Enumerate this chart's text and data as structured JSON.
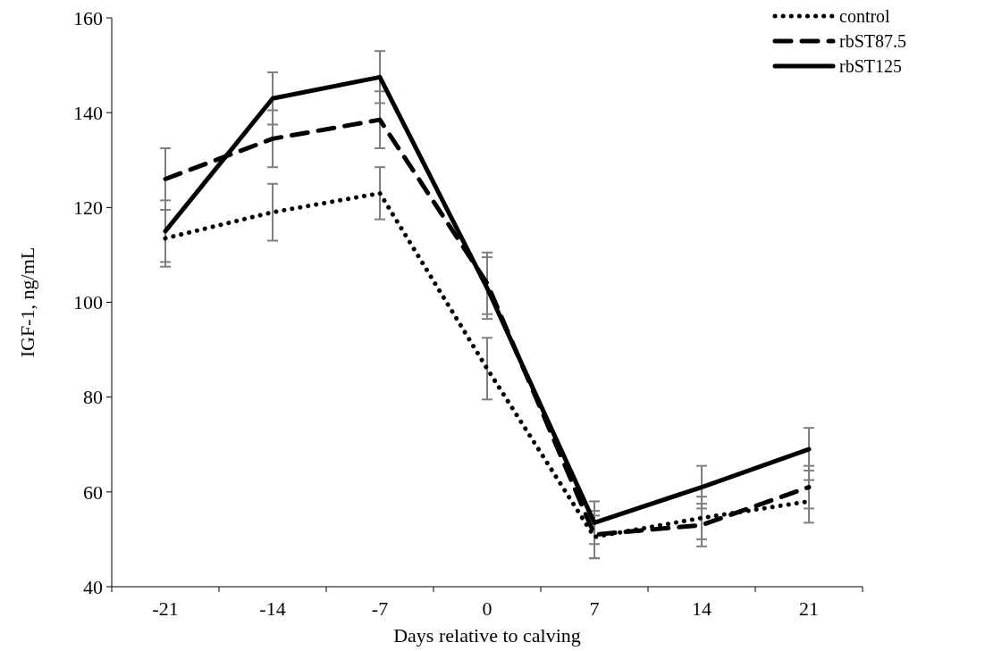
{
  "chart_data": {
    "type": "line",
    "xlabel": "Days relative to calving",
    "ylabel": "IGF-1, ng/mL",
    "categories": [
      "-21",
      "-14",
      "-7",
      "0",
      "7",
      "14",
      "21"
    ],
    "ylim": [
      40,
      160
    ],
    "yticks": [
      40,
      60,
      80,
      100,
      120,
      140,
      160
    ],
    "grid": false,
    "legend": "top right",
    "marker": "none",
    "series": [
      {
        "name": "control",
        "color": "#000000",
        "line_style": "dotted",
        "values": [
          113.5,
          119,
          123,
          86,
          50.5,
          54.5,
          58
        ],
        "errors": [
          6,
          6,
          5.5,
          6.5,
          4.5,
          4.5,
          4.5
        ]
      },
      {
        "name": "rbST87.5",
        "color": "#000000",
        "line_style": "dashed",
        "values": [
          126,
          134.5,
          138.5,
          104,
          51,
          53,
          61
        ],
        "errors": [
          6.5,
          6,
          6,
          6.5,
          5,
          4.5,
          4.5
        ]
      },
      {
        "name": "rbST125",
        "color": "#000000",
        "line_style": "solid",
        "values": [
          115,
          143,
          147.5,
          103,
          53.5,
          61,
          69
        ],
        "errors": [
          6.5,
          5.5,
          5.5,
          6.5,
          4.5,
          4.5,
          4.5
        ]
      }
    ]
  }
}
